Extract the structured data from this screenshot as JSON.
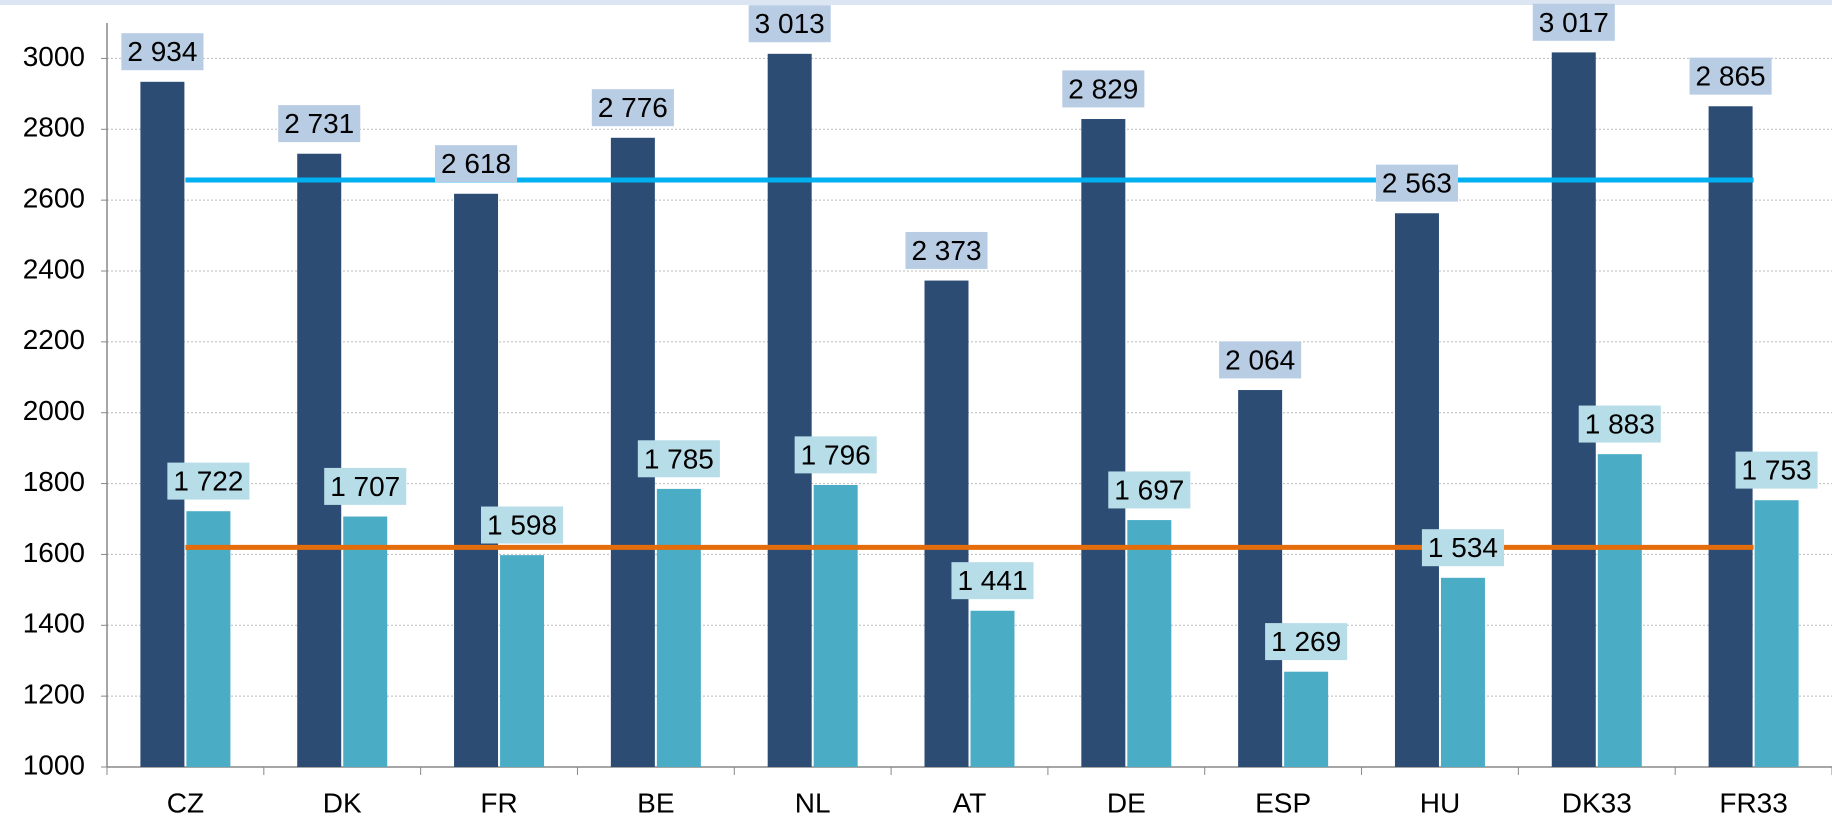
{
  "chart_data": {
    "type": "bar",
    "categories": [
      "CZ",
      "DK",
      "FR",
      "BE",
      "NL",
      "AT",
      "DE",
      "ESP",
      "HU",
      "DK33",
      "FR33"
    ],
    "series": [
      {
        "color": "#2c4c74",
        "label_bg": "#b8cce4",
        "values": [
          2934,
          2731,
          2618,
          2776,
          3013,
          2373,
          2829,
          2064,
          2563,
          3017,
          2865
        ],
        "value_labels": [
          "2 934",
          "2 731",
          "2 618",
          "2 776",
          "3 013",
          "2 373",
          "2 829",
          "2 064",
          "2 563",
          "3 017",
          "2 865"
        ]
      },
      {
        "color": "#4bacc6",
        "label_bg": "#b7dde8",
        "values": [
          1722,
          1707,
          1598,
          1785,
          1796,
          1441,
          1697,
          1269,
          1534,
          1883,
          1753
        ],
        "value_labels": [
          "1 722",
          "1 707",
          "1 598",
          "1 785",
          "1 796",
          "1 441",
          "1 697",
          "1 269",
          "1 534",
          "1 883",
          "1 753"
        ]
      }
    ],
    "reference_lines": [
      {
        "value": 2657,
        "color": "#00b0f0"
      },
      {
        "value": 1620,
        "color": "#e46c0a"
      }
    ],
    "ylim": [
      1000,
      3100
    ],
    "yticks": [
      1000,
      1200,
      1400,
      1600,
      1800,
      2000,
      2200,
      2400,
      2600,
      2800,
      3000
    ],
    "grid": true
  }
}
